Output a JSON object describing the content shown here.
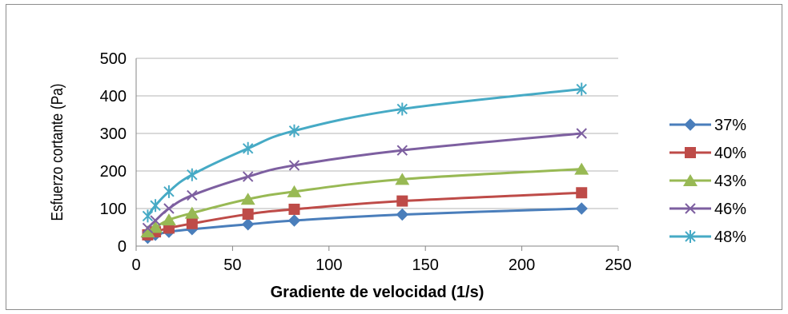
{
  "chart_data": {
    "type": "line",
    "title": "",
    "xlabel": "Gradiente de velocidad (1/s)",
    "ylabel": "Esfuerzo cortante (Pa)",
    "xlim": [
      0,
      250
    ],
    "ylim": [
      0,
      500
    ],
    "xticks": [
      0,
      50,
      100,
      150,
      200,
      250
    ],
    "yticks": [
      0,
      100,
      200,
      300,
      400,
      500
    ],
    "grid": "horizontal",
    "legend_position": "right",
    "x": [
      6,
      10,
      17,
      29,
      58,
      82,
      138,
      231
    ],
    "series": [
      {
        "name": "37%",
        "color": "#4a7ebb",
        "marker": "diamond",
        "values": [
          22,
          30,
          38,
          45,
          58,
          68,
          84,
          100
        ]
      },
      {
        "name": "40%",
        "color": "#be4b48",
        "marker": "square",
        "values": [
          30,
          38,
          48,
          60,
          85,
          98,
          120,
          142
        ]
      },
      {
        "name": "43%",
        "color": "#98b954",
        "marker": "triangle",
        "values": [
          38,
          50,
          70,
          88,
          125,
          145,
          178,
          205
        ]
      },
      {
        "name": "46%",
        "color": "#7d5fa0",
        "marker": "x",
        "values": [
          48,
          68,
          100,
          135,
          185,
          215,
          255,
          300
        ]
      },
      {
        "name": "48%",
        "color": "#46aac5",
        "marker": "star",
        "values": [
          80,
          108,
          145,
          190,
          260,
          307,
          365,
          418
        ]
      }
    ]
  }
}
